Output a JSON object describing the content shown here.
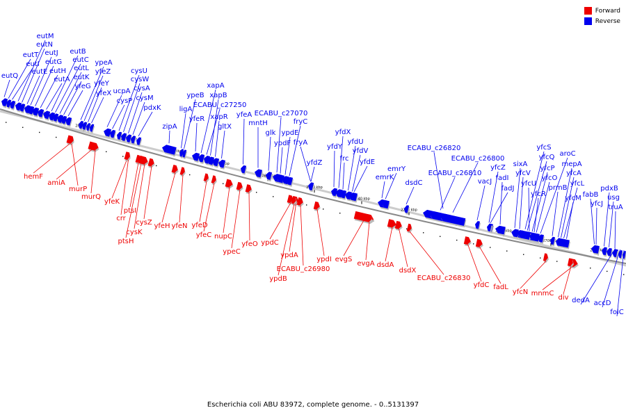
{
  "caption": "Escherichia coli ABU 83972, complete genome. - 0..5131397",
  "legend": [
    {
      "label": "Forward",
      "color": "#ee0000"
    },
    {
      "label": "Reverse",
      "color": "#0000ee"
    }
  ],
  "colors": {
    "forward": "#ee0000",
    "reverse": "#0000ee",
    "backbone": "#888888"
  },
  "ticks": [
    "2810 kbp",
    "2800 kbp",
    "2790 kbp",
    "2780 kbp",
    "2770 kbp",
    "2760 kbp",
    "2750 kbp",
    "2740 kbp",
    "2730 kbp",
    "2720 kbp",
    "2710 kbp",
    "2700 kbp",
    "2690 kbp"
  ],
  "genes": [
    {
      "n": "eutQ",
      "s": "-"
    },
    {
      "n": "eutT",
      "s": "-"
    },
    {
      "n": "eutI",
      "s": "-"
    },
    {
      "n": "eutM",
      "s": "-"
    },
    {
      "n": "eutN",
      "s": "-"
    },
    {
      "n": "eutE",
      "s": "-"
    },
    {
      "n": "eutJ",
      "s": "-"
    },
    {
      "n": "eutG",
      "s": "-"
    },
    {
      "n": "eutH",
      "s": "-"
    },
    {
      "n": "eutA",
      "s": "-"
    },
    {
      "n": "eutB",
      "s": "-"
    },
    {
      "n": "eutC",
      "s": "-"
    },
    {
      "n": "eutL",
      "s": "-"
    },
    {
      "n": "eutK",
      "s": "-"
    },
    {
      "n": "yfeG",
      "s": "-"
    },
    {
      "n": "hemF",
      "s": "+"
    },
    {
      "n": "amiA",
      "s": "+"
    },
    {
      "n": "murP",
      "s": "+"
    },
    {
      "n": "murQ",
      "s": "+"
    },
    {
      "n": "ypeA",
      "s": "-"
    },
    {
      "n": "yfeZ",
      "s": "-"
    },
    {
      "n": "yfeY",
      "s": "-"
    },
    {
      "n": "yfeX",
      "s": "-"
    },
    {
      "n": "yfeK",
      "s": "+"
    },
    {
      "n": "crr",
      "s": "+"
    },
    {
      "n": "ptsI",
      "s": "+"
    },
    {
      "n": "ptsH",
      "s": "+"
    },
    {
      "n": "cysK",
      "s": "+"
    },
    {
      "n": "cysZ",
      "s": "+"
    },
    {
      "n": "ucpA",
      "s": "-"
    },
    {
      "n": "cysP",
      "s": "-"
    },
    {
      "n": "cysU",
      "s": "-"
    },
    {
      "n": "cysW",
      "s": "-"
    },
    {
      "n": "cysA",
      "s": "-"
    },
    {
      "n": "cysM",
      "s": "-"
    },
    {
      "n": "pdxK",
      "s": "-"
    },
    {
      "n": "zipA",
      "s": "-"
    },
    {
      "n": "yfeH",
      "s": "+"
    },
    {
      "n": "yfeN",
      "s": "+"
    },
    {
      "n": "ligA",
      "s": "-"
    },
    {
      "n": "ypeB",
      "s": "-"
    },
    {
      "n": "yfeR",
      "s": "-"
    },
    {
      "n": "yfeD",
      "s": "+"
    },
    {
      "n": "yfeC",
      "s": "+"
    },
    {
      "n": "xapA",
      "s": "-"
    },
    {
      "n": "ECABU_c27250",
      "s": "-"
    },
    {
      "n": "xapB",
      "s": "-"
    },
    {
      "n": "xapR",
      "s": "-"
    },
    {
      "n": "nupC",
      "s": "+"
    },
    {
      "n": "gltX",
      "s": "-"
    },
    {
      "n": "ypeC",
      "s": "+"
    },
    {
      "n": "yfeO",
      "s": "+"
    },
    {
      "n": "yfeA",
      "s": "-"
    },
    {
      "n": "mntH",
      "s": "-"
    },
    {
      "n": "glk",
      "s": "-"
    },
    {
      "n": "ECABU_c27070",
      "s": "-"
    },
    {
      "n": "ypdF",
      "s": "-"
    },
    {
      "n": "ypdE",
      "s": "-"
    },
    {
      "n": "fryC",
      "s": "-"
    },
    {
      "n": "ypdC",
      "s": "+"
    },
    {
      "n": "ypdA",
      "s": "+"
    },
    {
      "n": "ypdB",
      "s": "+"
    },
    {
      "n": "ECABU_c26980",
      "s": "+"
    },
    {
      "n": "fryA",
      "s": "-"
    },
    {
      "n": "ypdI",
      "s": "+"
    },
    {
      "n": "yfdZ",
      "s": "-"
    },
    {
      "n": "evgS",
      "s": "+"
    },
    {
      "n": "yfdY",
      "s": "-"
    },
    {
      "n": "yfdX",
      "s": "-"
    },
    {
      "n": "frc",
      "s": "-"
    },
    {
      "n": "yfdU",
      "s": "-"
    },
    {
      "n": "yfdV",
      "s": "-"
    },
    {
      "n": "evgA",
      "s": "+"
    },
    {
      "n": "yfdE",
      "s": "-"
    },
    {
      "n": "emrK",
      "s": "-"
    },
    {
      "n": "emrY",
      "s": "-"
    },
    {
      "n": "dsdA",
      "s": "+"
    },
    {
      "n": "dsdX",
      "s": "+"
    },
    {
      "n": "dsdC",
      "s": "-"
    },
    {
      "n": "ECABU_c26830",
      "s": "+"
    },
    {
      "n": "ECABU_c26820",
      "s": "-"
    },
    {
      "n": "ECABU_c26810",
      "s": "-"
    },
    {
      "n": "ECABU_c26800",
      "s": "-"
    },
    {
      "n": "vacJ",
      "s": "-"
    },
    {
      "n": "yfdC",
      "s": "+"
    },
    {
      "n": "fadL",
      "s": "+"
    },
    {
      "n": "fadJ",
      "s": "-"
    },
    {
      "n": "fadI",
      "s": "-"
    },
    {
      "n": "yfcZ",
      "s": "-"
    },
    {
      "n": "sixA",
      "s": "-"
    },
    {
      "n": "yfcV",
      "s": "-"
    },
    {
      "n": "yfcU",
      "s": "-"
    },
    {
      "n": "yfcS",
      "s": "-"
    },
    {
      "n": "yfcQ",
      "s": "-"
    },
    {
      "n": "yfcP",
      "s": "-"
    },
    {
      "n": "yfcR",
      "s": "-"
    },
    {
      "n": "yfcO",
      "s": "-"
    },
    {
      "n": "yfcN",
      "s": "+"
    },
    {
      "n": "aroC",
      "s": "-"
    },
    {
      "n": "prmB",
      "s": "-"
    },
    {
      "n": "mepA",
      "s": "-"
    },
    {
      "n": "yfcA",
      "s": "-"
    },
    {
      "n": "yfcL",
      "s": "-"
    },
    {
      "n": "yfcM",
      "s": "-"
    },
    {
      "n": "mnmC",
      "s": "+"
    },
    {
      "n": "div",
      "s": "+"
    },
    {
      "n": "fabB",
      "s": "-"
    },
    {
      "n": "yfcJ",
      "s": "-"
    },
    {
      "n": "pdxB",
      "s": "-"
    },
    {
      "n": "usg",
      "s": "-"
    },
    {
      "n": "truA",
      "s": "-"
    },
    {
      "n": "dedA",
      "s": "-"
    },
    {
      "n": "accD",
      "s": "-"
    },
    {
      "n": "folC",
      "s": "-"
    }
  ]
}
